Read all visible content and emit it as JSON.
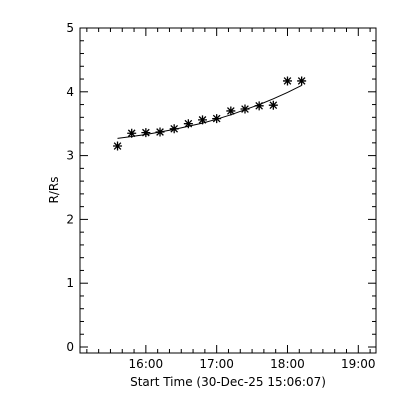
{
  "chart_data": {
    "type": "scatter",
    "xlabel": "Start Time (30-Dec-25 15:06:07)",
    "ylabel": "R/Rs",
    "x_unit": "hours",
    "xlim": [
      15.07,
      19.25
    ],
    "ylim": [
      0,
      5
    ],
    "x_ticks": [
      {
        "value": 16,
        "label": "16:00"
      },
      {
        "value": 17,
        "label": "17:00"
      },
      {
        "value": 18,
        "label": "18:00"
      },
      {
        "value": 19,
        "label": "19:00"
      }
    ],
    "y_ticks": [
      {
        "value": 0,
        "label": "0"
      },
      {
        "value": 1,
        "label": "1"
      },
      {
        "value": 2,
        "label": "2"
      },
      {
        "value": 3,
        "label": "3"
      },
      {
        "value": 4,
        "label": "4"
      },
      {
        "value": 5,
        "label": "5"
      }
    ],
    "grid": false,
    "marker": "asterisk",
    "color": "#000000",
    "series": [
      {
        "x": [
          15.6,
          15.8,
          16.0,
          16.2,
          16.4,
          16.6,
          16.8,
          17.0,
          17.2,
          17.4,
          17.6,
          17.8,
          18.0,
          18.2
        ],
        "y": [
          3.15,
          3.35,
          3.36,
          3.37,
          3.42,
          3.5,
          3.56,
          3.58,
          3.7,
          3.73,
          3.78,
          3.79,
          4.17,
          4.17
        ]
      }
    ],
    "fit_curve": {
      "x": [
        15.6,
        15.8,
        16.0,
        16.2,
        16.4,
        16.6,
        16.8,
        17.0,
        17.2,
        17.4,
        17.6,
        17.8,
        18.0,
        18.2
      ],
      "y": [
        3.27,
        3.3,
        3.33,
        3.37,
        3.41,
        3.46,
        3.51,
        3.57,
        3.64,
        3.72,
        3.8,
        3.89,
        3.99,
        4.1
      ]
    }
  }
}
